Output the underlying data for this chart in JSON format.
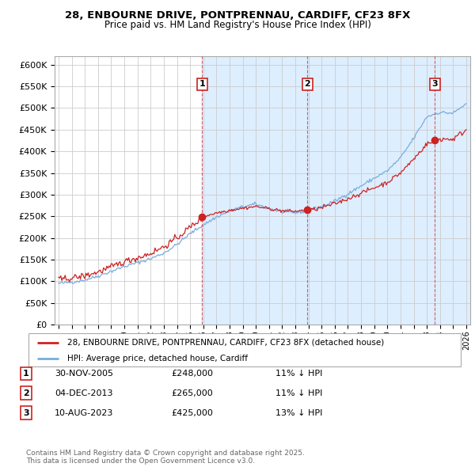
{
  "title": "28, ENBOURNE DRIVE, PONTPRENNAU, CARDIFF, CF23 8FX",
  "subtitle": "Price paid vs. HM Land Registry's House Price Index (HPI)",
  "background_color": "#ffffff",
  "plot_bg_color": "#ffffff",
  "grid_color": "#cccccc",
  "hpi_line_color": "#7aacdc",
  "price_line_color": "#cc2222",
  "shade_color": "#ddeeff",
  "ylim": [
    0,
    620000
  ],
  "yticks": [
    0,
    50000,
    100000,
    150000,
    200000,
    250000,
    300000,
    350000,
    400000,
    450000,
    500000,
    550000,
    600000
  ],
  "x_start_year": 1995,
  "x_end_year": 2026,
  "purchases": [
    {
      "date_decimal": 2005.92,
      "price": 248000,
      "label": "1"
    },
    {
      "date_decimal": 2013.92,
      "price": 265000,
      "label": "2"
    },
    {
      "date_decimal": 2023.61,
      "price": 425000,
      "label": "3"
    }
  ],
  "legend_entries": [
    {
      "label": "28, ENBOURNE DRIVE, PONTPRENNAU, CARDIFF, CF23 8FX (detached house)",
      "color": "#cc2222"
    },
    {
      "label": "HPI: Average price, detached house, Cardiff",
      "color": "#7aacdc"
    }
  ],
  "table_rows": [
    {
      "num": "1",
      "date": "30-NOV-2005",
      "price": "£248,000",
      "change": "11% ↓ HPI"
    },
    {
      "num": "2",
      "date": "04-DEC-2013",
      "price": "£265,000",
      "change": "11% ↓ HPI"
    },
    {
      "num": "3",
      "date": "10-AUG-2023",
      "price": "£425,000",
      "change": "13% ↓ HPI"
    }
  ],
  "footer_text": "Contains HM Land Registry data © Crown copyright and database right 2025.\nThis data is licensed under the Open Government Licence v3.0."
}
